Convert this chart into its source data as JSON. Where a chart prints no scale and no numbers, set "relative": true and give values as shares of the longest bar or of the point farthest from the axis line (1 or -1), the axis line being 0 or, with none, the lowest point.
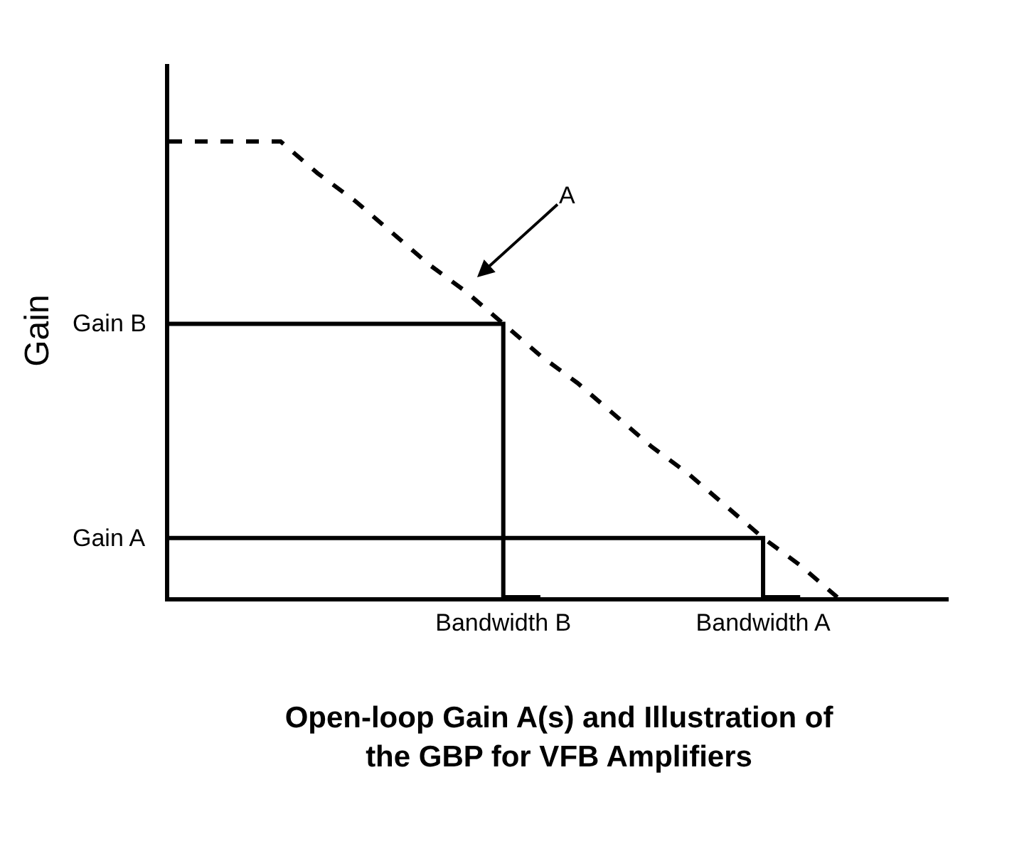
{
  "chart_data": {
    "type": "line",
    "title": "Open-loop Gain A(s) and Illustration of the GBP for VFB Amplifiers",
    "ylabel": "Gain",
    "relative": true,
    "categories": [
      null,
      null,
      null,
      null,
      null,
      null,
      null,
      null,
      null,
      "Bandwidth B",
      null,
      null,
      null,
      null,
      null,
      null,
      "Bandwidth A",
      null,
      null,
      null,
      null,
      null
    ],
    "series": [
      {
        "color": "#000000",
        "line_style": "dashed",
        "values": [
          1,
          1,
          1,
          1,
          0.93,
          0.87,
          0.8,
          0.73,
          0.67,
          0.6,
          0.53,
          0.47,
          0.4,
          0.33,
          0.27,
          0.2,
          0.13,
          0.07,
          0,
          null,
          null,
          null
        ]
      },
      {
        "type": "step",
        "color": "#000000",
        "line_style": "solid",
        "values": [
          0.6,
          0.6,
          0.6,
          0.6,
          0.6,
          0.6,
          0.6,
          0.6,
          0.6,
          0.6,
          0,
          null,
          null,
          null,
          null,
          null,
          null,
          null,
          null,
          null,
          null,
          null
        ]
      },
      {
        "type": "step",
        "color": "#000000",
        "line_style": "solid",
        "values": [
          0.13,
          0.13,
          0.13,
          0.13,
          0.13,
          0.13,
          0.13,
          0.13,
          0.13,
          0.13,
          0.13,
          0.13,
          0.13,
          0.13,
          0.13,
          0.13,
          0.13,
          0,
          null,
          null,
          null,
          null
        ]
      }
    ],
    "annotations": [
      "A",
      "Gain B",
      "Gain A"
    ],
    "grid": false,
    "marker": "none"
  }
}
